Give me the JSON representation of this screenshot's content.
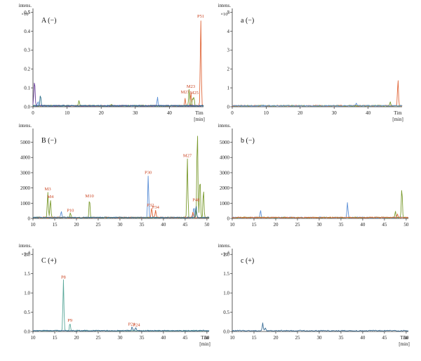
{
  "chart_data": [
    {
      "id": "A",
      "type": "line",
      "title": "A (−)",
      "ylabel_top": "intens.",
      "y_multiplier": "×10",
      "y_multiplier_exp": "5",
      "xlabel": "Tim",
      "xunit": "[min]",
      "xlim": [
        0,
        50
      ],
      "ylim": [
        0,
        0.52
      ],
      "xticks": [
        0,
        10,
        20,
        30,
        40
      ],
      "yticks": [
        0.0,
        0.1,
        0.2,
        0.3,
        0.4,
        0.5
      ],
      "yticklabels": [
        "0.0",
        "0.1",
        "0.2",
        "0.3",
        "0.4",
        "0.5"
      ],
      "grid": false,
      "series": [
        {
          "color": "#e0673a",
          "peaks": [
            [
              49.2,
              0.46
            ],
            [
              46.3,
              0.07
            ],
            [
              44.6,
              0.04
            ]
          ]
        },
        {
          "color": "#7a9a2e",
          "peaks": [
            [
              13.5,
              0.03
            ],
            [
              23.0,
              0.01
            ],
            [
              45.8,
              0.09
            ],
            [
              47.2,
              0.05
            ],
            [
              46.8,
              0.04
            ]
          ]
        },
        {
          "color": "#5b8fd6",
          "peaks": [
            [
              36.5,
              0.045
            ],
            [
              1.5,
              0.02
            ]
          ]
        },
        {
          "color": "#6a3d9a",
          "peaks": [
            [
              0.5,
              0.11
            ],
            [
              0.3,
              0.05
            ]
          ]
        },
        {
          "color": "#2c6e8a",
          "peaks": [
            [
              2.2,
              0.06
            ]
          ]
        }
      ],
      "annotations": [
        {
          "text": "P51",
          "x": 49.2,
          "y": 0.46
        },
        {
          "text": "M23",
          "x": 46.3,
          "y": 0.09
        },
        {
          "text": "M27",
          "x": 44.6,
          "y": 0.06
        },
        {
          "text": "M25",
          "x": 47.3,
          "y": 0.055
        }
      ]
    },
    {
      "id": "a",
      "type": "line",
      "title": "a (−)",
      "ylabel_top": "intens.",
      "y_multiplier": "×10",
      "y_multiplier_exp": "4",
      "xlabel": "Tim",
      "xunit": "[min]",
      "xlim": [
        0,
        50
      ],
      "ylim": [
        0,
        5.2
      ],
      "xticks": [
        0,
        10,
        20,
        30,
        40
      ],
      "yticks": [
        0,
        1,
        2,
        3,
        4,
        5
      ],
      "yticklabels": [
        "0",
        "1",
        "2",
        "3",
        "4",
        "5"
      ],
      "grid": false,
      "series": [
        {
          "color": "#e0673a",
          "peaks": [
            [
              48.8,
              1.4
            ]
          ]
        },
        {
          "color": "#7a9a2e",
          "peaks": [
            [
              46.5,
              0.2
            ]
          ]
        },
        {
          "color": "#5b8fd6",
          "peaks": [
            [
              36.5,
              0.12
            ]
          ]
        }
      ],
      "annotations": []
    },
    {
      "id": "B",
      "type": "line",
      "title": "B (−)",
      "ylabel_top": "intens.",
      "xlabel": "",
      "xunit": "",
      "xlim": [
        10,
        50.5
      ],
      "ylim": [
        0,
        5900
      ],
      "xticks": [
        10,
        15,
        20,
        25,
        30,
        35,
        40,
        45,
        50
      ],
      "yticks": [
        0,
        1000,
        2000,
        3000,
        4000,
        5000
      ],
      "yticklabels": [
        "0",
        "1000",
        "2000",
        "3000",
        "4000",
        "5000"
      ],
      "grid": false,
      "series": [
        {
          "color": "#7a9a2e",
          "peaks": [
            [
              13.4,
              1700
            ],
            [
              14.0,
              1200
            ],
            [
              23.0,
              1250
            ],
            [
              45.5,
              3900
            ],
            [
              47.8,
              5900
            ],
            [
              48.4,
              2700
            ],
            [
              49.2,
              1900
            ],
            [
              18.6,
              300
            ]
          ]
        },
        {
          "color": "#5b8fd6",
          "peaks": [
            [
              16.5,
              450
            ],
            [
              36.5,
              2800
            ],
            [
              47.0,
              700
            ]
          ]
        },
        {
          "color": "#e0673a",
          "peaks": [
            [
              37.3,
              650
            ],
            [
              38.2,
              500
            ],
            [
              46.8,
              400
            ]
          ]
        },
        {
          "color": "#2c6e8a",
          "peaks": [
            [
              47.5,
              800
            ]
          ]
        }
      ],
      "annotations": [
        {
          "text": "M3",
          "x": 13.4,
          "y": 1700
        },
        {
          "text": "M4",
          "x": 14.0,
          "y": 1200
        },
        {
          "text": "P10",
          "x": 18.6,
          "y": 300
        },
        {
          "text": "M10",
          "x": 23.0,
          "y": 1250
        },
        {
          "text": "P30",
          "x": 36.5,
          "y": 2800
        },
        {
          "text": "P32",
          "x": 37.0,
          "y": 650
        },
        {
          "text": "P34",
          "x": 38.2,
          "y": 500
        },
        {
          "text": "M27",
          "x": 45.5,
          "y": 3900
        },
        {
          "text": "P48",
          "x": 47.5,
          "y": 1000
        }
      ]
    },
    {
      "id": "b",
      "type": "line",
      "title": "b (−)",
      "ylabel_top": "intens.",
      "xlabel": "",
      "xunit": "",
      "xlim": [
        10,
        50.5
      ],
      "ylim": [
        0,
        5900
      ],
      "xticks": [
        10,
        15,
        20,
        25,
        30,
        35,
        40,
        45,
        50
      ],
      "yticks": [
        0,
        1000,
        2000,
        3000,
        4000,
        5000
      ],
      "yticklabels": [
        "0",
        "1000",
        "2000",
        "3000",
        "4000",
        "5000"
      ],
      "grid": false,
      "series": [
        {
          "color": "#5b8fd6",
          "peaks": [
            [
              16.5,
              450
            ],
            [
              36.5,
              1000
            ]
          ]
        },
        {
          "color": "#7a9a2e",
          "peaks": [
            [
              49.0,
              2000
            ],
            [
              47.5,
              400
            ]
          ]
        },
        {
          "color": "#e0673a",
          "peaks": [
            [
              48.0,
              200
            ]
          ]
        }
      ],
      "annotations": []
    },
    {
      "id": "C",
      "type": "line",
      "title": "C (+)",
      "ylabel_top": "intens.",
      "y_multiplier": "×10",
      "y_multiplier_exp": "6",
      "xlabel": "Tim",
      "xunit": "[min]",
      "xlim": [
        10,
        50.5
      ],
      "ylim": [
        0,
        2.15
      ],
      "xticks": [
        10,
        15,
        20,
        25,
        30,
        35,
        40,
        45,
        50
      ],
      "yticks": [
        0.0,
        0.5,
        1.0,
        1.5,
        2.0
      ],
      "yticklabels": [
        "0.0",
        "0.5",
        "1.0",
        "1.5",
        "2.0"
      ],
      "grid": false,
      "series": [
        {
          "color": "#5aa89a",
          "peaks": [
            [
              17.0,
              1.32
            ],
            [
              18.5,
              0.2
            ]
          ]
        },
        {
          "color": "#3a6d96",
          "peaks": [
            [
              32.8,
              0.1
            ],
            [
              33.6,
              0.08
            ]
          ]
        }
      ],
      "annotations": [
        {
          "text": "P8",
          "x": 17.0,
          "y": 1.32
        },
        {
          "text": "P9",
          "x": 18.5,
          "y": 0.2
        },
        {
          "text": "P21",
          "x": 32.7,
          "y": 0.1
        },
        {
          "text": "P24",
          "x": 33.8,
          "y": 0.08
        }
      ]
    },
    {
      "id": "c",
      "type": "line",
      "title": "c (+)",
      "ylabel_top": "intens.",
      "y_multiplier": "×10",
      "y_multiplier_exp": "6",
      "xlabel": "Tim",
      "xunit": "[min]",
      "xlim": [
        10,
        50.5
      ],
      "ylim": [
        0,
        2.15
      ],
      "xticks": [
        10,
        15,
        20,
        25,
        30,
        35,
        40,
        45,
        50
      ],
      "yticks": [
        0.0,
        0.5,
        1.0,
        1.5,
        2.0
      ],
      "yticklabels": [
        "0.0",
        "0.5",
        "1.0",
        "1.5",
        "2.0"
      ],
      "grid": false,
      "series": [
        {
          "color": "#3a6d96",
          "peaks": [
            [
              17.0,
              0.2
            ],
            [
              17.6,
              0.08
            ]
          ]
        }
      ],
      "annotations": []
    }
  ]
}
